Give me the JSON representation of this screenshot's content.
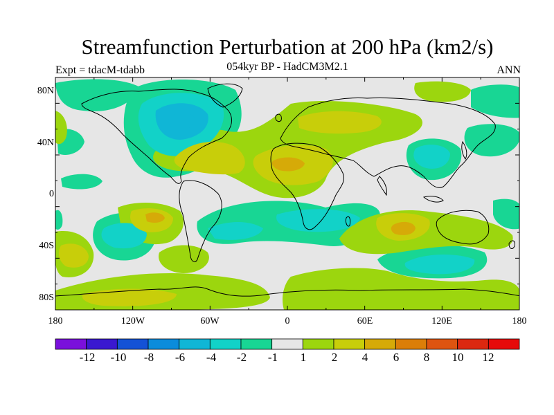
{
  "title": "Streamfunction Perturbation at 200 hPa (km2/s)",
  "subtitle": "054kyr BP - HadCM3M2.1",
  "expt": "Expt = tdacM-tdabb",
  "season": "ANN",
  "lat_labels": [
    "80N",
    "40N",
    "0",
    "40S",
    "80S"
  ],
  "lon_labels": [
    "180",
    "120W",
    "60W",
    "0",
    "60E",
    "120E",
    "180"
  ],
  "colorbar": {
    "colors": [
      "#7a10dc",
      "#3a18d0",
      "#1452d6",
      "#0b8cdc",
      "#10b6d6",
      "#12d2c8",
      "#18d694",
      "#e6e6e6",
      "#9cd60e",
      "#c8ce0a",
      "#d6aa08",
      "#dc7e08",
      "#de5410",
      "#dc2810",
      "#e60a0a"
    ],
    "labels": [
      "-12",
      "-10",
      "-8",
      "-6",
      "-4",
      "-2",
      "-1",
      "1",
      "2",
      "4",
      "6",
      "8",
      "10",
      "12"
    ]
  },
  "palette": {
    "neutral": "#e6e6e6",
    "neg1": "#18d694",
    "neg2": "#12d2c8",
    "neg3": "#10b6d6",
    "neg4": "#0b8cdc",
    "pos1": "#9cd60e",
    "pos2": "#c8ce0a",
    "pos3": "#d6aa08",
    "coast": "#000000"
  }
}
